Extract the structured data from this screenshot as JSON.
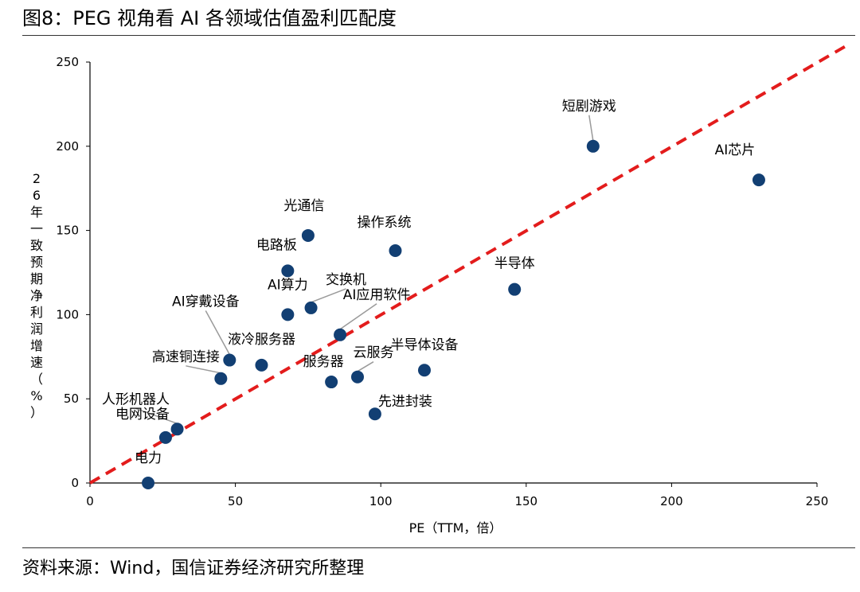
{
  "page": {
    "title": "图8：PEG 视角看 AI 各领域估值盈利匹配度",
    "source": "资料来源：Wind，国信证券经济研究所整理"
  },
  "chart_data": {
    "type": "scatter",
    "xlabel": "PE（TTM，倍）",
    "ylabel": "26年一致预期净利润增速（%）",
    "xlim": [
      0,
      250
    ],
    "ylim": [
      0,
      250
    ],
    "xticks": [
      0,
      50,
      100,
      150,
      200,
      250
    ],
    "yticks": [
      0,
      50,
      100,
      150,
      200,
      250
    ],
    "grid": false,
    "reference_line": {
      "from": [
        0,
        0
      ],
      "to": [
        260,
        260
      ],
      "color": "#e31c1c",
      "style": "dashed"
    },
    "marker_color": "#123f73",
    "points": [
      {
        "label": "短剧游戏",
        "x": 173,
        "y": 200
      },
      {
        "label": "AI芯片",
        "x": 230,
        "y": 180
      },
      {
        "label": "光通信",
        "x": 75,
        "y": 147
      },
      {
        "label": "操作系统",
        "x": 105,
        "y": 138
      },
      {
        "label": "电路板",
        "x": 68,
        "y": 126
      },
      {
        "label": "半导体",
        "x": 146,
        "y": 115
      },
      {
        "label": "交换机",
        "x": 76,
        "y": 104
      },
      {
        "label": "AI算力",
        "x": 68,
        "y": 100
      },
      {
        "label": "AI应用软件",
        "x": 86,
        "y": 88
      },
      {
        "label": "AI穿戴设备",
        "x": 48,
        "y": 73
      },
      {
        "label": "液冷服务器",
        "x": 59,
        "y": 70
      },
      {
        "label": "半导体设备",
        "x": 115,
        "y": 67
      },
      {
        "label": "云服务",
        "x": 92,
        "y": 63
      },
      {
        "label": "高速铜连接",
        "x": 45,
        "y": 62
      },
      {
        "label": "服务器",
        "x": 83,
        "y": 60
      },
      {
        "label": "先进封装",
        "x": 98,
        "y": 41
      },
      {
        "label": "人形机器人",
        "x": 30,
        "y": 32
      },
      {
        "label": "电网设备",
        "x": 26,
        "y": 27
      },
      {
        "label": "电力",
        "x": 20,
        "y": 0
      }
    ]
  }
}
